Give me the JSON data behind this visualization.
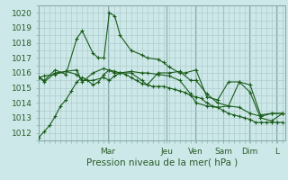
{
  "title": "",
  "xlabel": "Pression niveau de la mer( hPa )",
  "ylabel": "",
  "bg_color": "#cce8e8",
  "grid_color": "#b0cccc",
  "line_color": "#1a5c1a",
  "ylim": [
    1011.5,
    1020.5
  ],
  "yticks": [
    1012,
    1013,
    1014,
    1015,
    1016,
    1017,
    1018,
    1019,
    1020
  ],
  "day_labels": [
    "Mar",
    "Jeu",
    "Ven",
    "Sam",
    "Dim",
    "L"
  ],
  "day_positions": [
    0.28,
    0.52,
    0.635,
    0.75,
    0.855,
    0.965
  ],
  "series": [
    {
      "x": [
        0.0,
        0.022,
        0.044,
        0.066,
        0.088,
        0.11,
        0.132,
        0.154,
        0.176,
        0.198,
        0.22,
        0.242,
        0.264,
        0.286,
        0.308,
        0.33,
        0.352,
        0.374,
        0.396,
        0.418,
        0.44,
        0.462,
        0.484,
        0.506,
        0.528,
        0.55,
        0.572,
        0.594,
        0.616,
        0.638,
        0.66,
        0.682,
        0.704,
        0.726,
        0.748,
        0.77,
        0.792,
        0.814,
        0.836,
        0.858,
        0.88,
        0.902,
        0.924,
        0.946,
        0.968,
        0.99
      ],
      "y": [
        1011.7,
        1012.1,
        1012.5,
        1013.1,
        1013.8,
        1014.2,
        1014.8,
        1015.4,
        1015.7,
        1015.5,
        1015.2,
        1015.4,
        1015.9,
        1016.2,
        1016.1,
        1016.0,
        1015.9,
        1015.7,
        1015.5,
        1015.3,
        1015.2,
        1015.1,
        1015.1,
        1015.1,
        1015.0,
        1014.9,
        1014.8,
        1014.7,
        1014.5,
        1014.4,
        1014.3,
        1014.0,
        1013.8,
        1013.7,
        1013.5,
        1013.3,
        1013.2,
        1013.1,
        1013.0,
        1012.9,
        1012.7,
        1012.7,
        1012.7,
        1012.7,
        1012.7,
        1012.7
      ]
    },
    {
      "x": [
        0.0,
        0.022,
        0.066,
        0.11,
        0.154,
        0.176,
        0.22,
        0.264,
        0.286,
        0.308,
        0.33,
        0.374,
        0.418,
        0.44,
        0.484,
        0.528,
        0.572,
        0.616,
        0.638,
        0.682,
        0.726,
        0.77,
        0.814,
        0.858,
        0.902,
        0.946,
        0.99
      ],
      "y": [
        1015.7,
        1015.8,
        1015.9,
        1016.1,
        1015.9,
        1015.5,
        1015.5,
        1015.7,
        1015.5,
        1015.8,
        1016.0,
        1016.0,
        1015.5,
        1015.2,
        1016.0,
        1016.0,
        1016.1,
        1015.5,
        1015.5,
        1014.6,
        1014.0,
        1013.8,
        1013.7,
        1013.3,
        1013.1,
        1013.3,
        1013.3
      ]
    },
    {
      "x": [
        0.0,
        0.022,
        0.066,
        0.11,
        0.154,
        0.176,
        0.22,
        0.242,
        0.264,
        0.286,
        0.308,
        0.33,
        0.374,
        0.418,
        0.44,
        0.484,
        0.506,
        0.528,
        0.572,
        0.594,
        0.638,
        0.682,
        0.726,
        0.77,
        0.814,
        0.858,
        0.9,
        0.945,
        0.99
      ],
      "y": [
        1015.7,
        1015.5,
        1016.2,
        1015.9,
        1018.3,
        1018.8,
        1017.3,
        1017.0,
        1017.0,
        1020.0,
        1019.8,
        1018.5,
        1017.5,
        1017.2,
        1017.0,
        1016.9,
        1016.7,
        1016.4,
        1016.0,
        1016.0,
        1016.2,
        1014.4,
        1014.2,
        1015.4,
        1015.4,
        1014.7,
        1013.0,
        1012.8,
        1013.3
      ]
    },
    {
      "x": [
        0.0,
        0.022,
        0.066,
        0.11,
        0.154,
        0.176,
        0.22,
        0.264,
        0.308,
        0.33,
        0.374,
        0.418,
        0.44,
        0.484,
        0.528,
        0.572,
        0.616,
        0.638,
        0.682,
        0.726,
        0.77,
        0.814,
        0.858,
        0.9,
        0.945,
        0.99
      ],
      "y": [
        1015.7,
        1015.4,
        1016.0,
        1016.1,
        1016.2,
        1015.4,
        1016.0,
        1016.3,
        1016.0,
        1016.0,
        1016.1,
        1016.0,
        1016.0,
        1015.9,
        1015.8,
        1015.5,
        1014.6,
        1014.0,
        1013.8,
        1013.7,
        1013.8,
        1015.4,
        1015.2,
        1013.2,
        1013.3,
        1013.3
      ]
    }
  ],
  "tick_fontsize": 6.5,
  "label_fontsize": 7.5,
  "marker_size": 2.5
}
